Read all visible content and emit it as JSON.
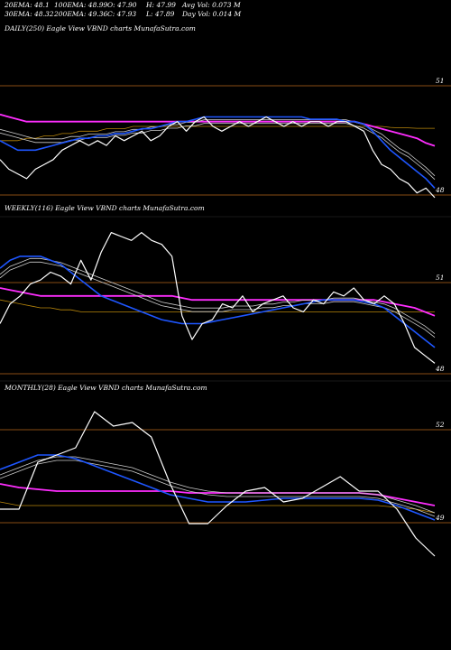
{
  "header": {
    "row1": [
      {
        "label": "20EMA: 48.1"
      },
      {
        "label": "100EMA: 48.99"
      },
      {
        "label": "O: 47.90"
      },
      {
        "label": "H: 47.99"
      },
      {
        "label": "Avg Vol: 0.073  M"
      }
    ],
    "row2": [
      {
        "label": "30EMA: 48.32"
      },
      {
        "label": "200EMA: 49.36"
      },
      {
        "label": "C: 47.93"
      },
      {
        "label": "L: 47.89"
      },
      {
        "label": "Day Vol: 0.014  M"
      }
    ]
  },
  "colors": {
    "background": "#000000",
    "price": "#ffffff",
    "ema_fast": "#1e56ff",
    "ema_long": "#ff2dff",
    "ema_200": "#b8860b",
    "ema_band": "#cccccc",
    "ref_line": "#b5651d"
  },
  "chart_data": [
    {
      "type": "line",
      "title": "DAILY(250) Eagle  View VBND charts MunafaSutra.com",
      "ytick_labels": [
        "51",
        "48"
      ],
      "series": [
        {
          "values": [
            48.7,
            48.5,
            48.4,
            48.3,
            48.5,
            48.6,
            48.7,
            48.9,
            49.0,
            49.1,
            49.0,
            49.1,
            49.0,
            49.2,
            49.1,
            49.2,
            49.3,
            49.1,
            49.2,
            49.4,
            49.5,
            49.3,
            49.5,
            49.6,
            49.4,
            49.3,
            49.4,
            49.5,
            49.4,
            49.5,
            49.6,
            49.5,
            49.4,
            49.5,
            49.4,
            49.5,
            49.5,
            49.4,
            49.5,
            49.5,
            49.4,
            49.3,
            48.9,
            48.6,
            48.5,
            48.3,
            48.2,
            48.0,
            48.1,
            47.9
          ]
        },
        {
          "values": [
            49.1,
            49.0,
            48.9,
            48.9,
            48.9,
            48.95,
            49.0,
            49.05,
            49.1,
            49.15,
            49.15,
            49.2,
            49.2,
            49.25,
            49.25,
            49.3,
            49.35,
            49.35,
            49.4,
            49.45,
            49.5,
            49.5,
            49.55,
            49.6,
            49.6,
            49.6,
            49.6,
            49.6,
            49.6,
            49.6,
            49.6,
            49.6,
            49.6,
            49.6,
            49.6,
            49.55,
            49.55,
            49.55,
            49.55,
            49.5,
            49.5,
            49.45,
            49.3,
            49.1,
            48.9,
            48.75,
            48.6,
            48.45,
            48.3,
            48.1
          ]
        },
        {
          "values": [
            49.3,
            49.25,
            49.2,
            49.15,
            49.1,
            49.1,
            49.1,
            49.1,
            49.15,
            49.15,
            49.2,
            49.2,
            49.2,
            49.25,
            49.25,
            49.3,
            49.3,
            49.35,
            49.35,
            49.4,
            49.4,
            49.45,
            49.45,
            49.5,
            49.5,
            49.5,
            49.5,
            49.5,
            49.5,
            49.5,
            49.5,
            49.5,
            49.5,
            49.5,
            49.5,
            49.5,
            49.5,
            49.5,
            49.5,
            49.5,
            49.45,
            49.4,
            49.3,
            49.2,
            49.05,
            48.9,
            48.8,
            48.65,
            48.5,
            48.32
          ]
        },
        {
          "values": [
            49.65,
            49.6,
            49.55,
            49.5,
            49.5,
            49.5,
            49.5,
            49.5,
            49.5,
            49.5,
            49.5,
            49.5,
            49.5,
            49.5,
            49.5,
            49.5,
            49.5,
            49.5,
            49.5,
            49.5,
            49.5,
            49.5,
            49.5,
            49.5,
            49.5,
            49.5,
            49.5,
            49.5,
            49.5,
            49.5,
            49.5,
            49.5,
            49.5,
            49.5,
            49.5,
            49.5,
            49.5,
            49.5,
            49.5,
            49.5,
            49.5,
            49.45,
            49.4,
            49.35,
            49.3,
            49.25,
            49.2,
            49.15,
            49.05,
            48.99
          ]
        },
        {
          "values": [
            49.1,
            49.1,
            49.1,
            49.15,
            49.15,
            49.2,
            49.2,
            49.25,
            49.25,
            49.3,
            49.3,
            49.3,
            49.35,
            49.35,
            49.35,
            49.4,
            49.4,
            49.4,
            49.4,
            49.4,
            49.4,
            49.4,
            49.4,
            49.4,
            49.4,
            49.4,
            49.4,
            49.4,
            49.4,
            49.4,
            49.4,
            49.4,
            49.4,
            49.4,
            49.4,
            49.4,
            49.4,
            49.4,
            49.4,
            49.4,
            49.4,
            49.4,
            49.4,
            49.4,
            49.38,
            49.37,
            49.37,
            49.36,
            49.36,
            49.36
          ]
        }
      ],
      "ylim": [
        47.5,
        51.3
      ]
    },
    {
      "type": "line",
      "title": "WEEKLY(116) Eagle  View VBND charts MunafaSutra.com",
      "ytick_labels": [
        "51",
        "48"
      ],
      "series": [
        {
          "values": [
            48.9,
            49.4,
            49.6,
            49.9,
            50.0,
            50.2,
            50.1,
            49.9,
            50.5,
            50.0,
            50.7,
            51.2,
            51.1,
            51.0,
            51.2,
            51.0,
            50.9,
            50.6,
            49.1,
            48.5,
            48.9,
            49.0,
            49.4,
            49.3,
            49.6,
            49.2,
            49.4,
            49.5,
            49.6,
            49.3,
            49.2,
            49.5,
            49.4,
            49.7,
            49.6,
            49.8,
            49.5,
            49.4,
            49.6,
            49.4,
            48.9,
            48.3,
            48.1,
            47.9
          ]
        },
        {
          "values": [
            50.3,
            50.5,
            50.6,
            50.6,
            50.6,
            50.5,
            50.4,
            50.2,
            50.0,
            49.8,
            49.6,
            49.5,
            49.4,
            49.3,
            49.2,
            49.1,
            49.0,
            48.95,
            48.9,
            48.9,
            48.9,
            48.95,
            49.0,
            49.05,
            49.1,
            49.15,
            49.2,
            49.25,
            49.3,
            49.35,
            49.4,
            49.45,
            49.5,
            49.5,
            49.5,
            49.5,
            49.45,
            49.4,
            49.3,
            49.1,
            48.9,
            48.7,
            48.5,
            48.3
          ]
        },
        {
          "values": [
            50.1,
            50.3,
            50.4,
            50.5,
            50.5,
            50.45,
            50.4,
            50.3,
            50.2,
            50.1,
            50.0,
            49.9,
            49.8,
            49.7,
            49.6,
            49.5,
            49.4,
            49.35,
            49.3,
            49.25,
            49.25,
            49.25,
            49.25,
            49.3,
            49.3,
            49.3,
            49.35,
            49.35,
            49.4,
            49.4,
            49.45,
            49.45,
            49.45,
            49.5,
            49.5,
            49.5,
            49.45,
            49.4,
            49.35,
            49.25,
            49.1,
            48.95,
            48.8,
            48.6
          ]
        },
        {
          "values": [
            49.8,
            49.75,
            49.7,
            49.65,
            49.6,
            49.6,
            49.6,
            49.6,
            49.6,
            49.6,
            49.6,
            49.6,
            49.6,
            49.6,
            49.6,
            49.6,
            49.6,
            49.6,
            49.55,
            49.5,
            49.5,
            49.5,
            49.5,
            49.5,
            49.5,
            49.5,
            49.5,
            49.5,
            49.5,
            49.5,
            49.5,
            49.5,
            49.5,
            49.5,
            49.5,
            49.5,
            49.5,
            49.5,
            49.45,
            49.4,
            49.35,
            49.3,
            49.2,
            49.1
          ]
        },
        {
          "values": [
            49.5,
            49.45,
            49.4,
            49.35,
            49.3,
            49.3,
            49.25,
            49.25,
            49.2,
            49.2,
            49.2,
            49.2,
            49.2,
            49.2,
            49.2,
            49.2,
            49.2,
            49.2,
            49.2,
            49.2,
            49.2,
            49.2,
            49.2,
            49.2,
            49.2,
            49.2,
            49.2,
            49.2,
            49.2,
            49.2,
            49.2,
            49.2,
            49.2,
            49.2,
            49.2,
            49.2,
            49.2,
            49.2,
            49.2,
            49.2,
            49.2,
            49.2,
            49.2,
            49.2
          ]
        }
      ],
      "ylim": [
        47.5,
        51.6
      ]
    },
    {
      "type": "line",
      "title": "MONTHLY(28) Eagle  View VBND charts MunafaSutra.com",
      "ytick_labels": [
        "52",
        "49"
      ],
      "series": [
        {
          "values": [
            49.3,
            49.3,
            50.6,
            50.8,
            51.0,
            52.0,
            51.6,
            51.7,
            51.3,
            50.0,
            48.9,
            48.9,
            49.4,
            49.8,
            49.9,
            49.5,
            49.6,
            49.9,
            50.2,
            49.8,
            49.8,
            49.3,
            48.5,
            48.0
          ]
        },
        {
          "values": [
            50.4,
            50.6,
            50.8,
            50.8,
            50.7,
            50.5,
            50.3,
            50.1,
            49.9,
            49.7,
            49.6,
            49.5,
            49.5,
            49.5,
            49.55,
            49.6,
            49.6,
            49.6,
            49.6,
            49.6,
            49.55,
            49.4,
            49.2,
            49.0
          ]
        },
        {
          "values": [
            50.2,
            50.4,
            50.6,
            50.7,
            50.7,
            50.6,
            50.5,
            50.4,
            50.2,
            50.0,
            49.85,
            49.75,
            49.7,
            49.7,
            49.7,
            49.7,
            49.7,
            49.7,
            49.7,
            49.7,
            49.65,
            49.5,
            49.35,
            49.15
          ]
        },
        {
          "values": [
            50.0,
            49.9,
            49.85,
            49.8,
            49.8,
            49.8,
            49.8,
            49.8,
            49.8,
            49.8,
            49.75,
            49.75,
            49.75,
            49.75,
            49.75,
            49.75,
            49.75,
            49.75,
            49.75,
            49.75,
            49.7,
            49.6,
            49.5,
            49.4
          ]
        },
        {
          "values": [
            49.5,
            49.4,
            49.4,
            49.4,
            49.4,
            49.4,
            49.4,
            49.4,
            49.4,
            49.4,
            49.4,
            49.4,
            49.4,
            49.4,
            49.4,
            49.4,
            49.4,
            49.4,
            49.4,
            49.4,
            49.4,
            49.35,
            49.3,
            49.2
          ]
        }
      ],
      "ylim": [
        47.9,
        52.4
      ]
    }
  ]
}
